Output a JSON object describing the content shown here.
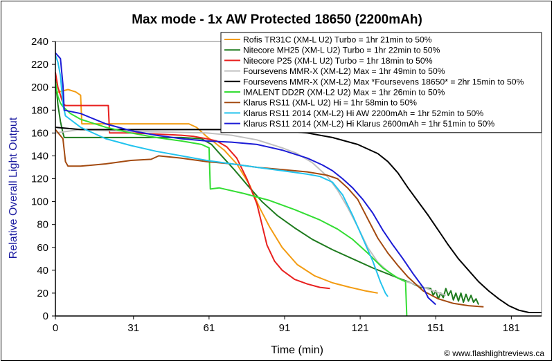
{
  "chart_data": {
    "type": "line",
    "title": "Max mode - 1x AW Protected 18650 (2200mAh)",
    "xlabel": "Time (min)",
    "ylabel": "Relative Overall Light Output",
    "credit": "© www.flashlightreviews.ca",
    "xlim": [
      0,
      193
    ],
    "ylim": [
      0,
      240
    ],
    "xticks": [
      0,
      31,
      61,
      91,
      121,
      151,
      181
    ],
    "yticks": [
      0,
      20,
      40,
      60,
      80,
      100,
      120,
      140,
      160,
      180,
      200,
      220,
      240
    ],
    "grid": false,
    "legend_position": "top-right",
    "series": [
      {
        "name": "Rofis TR31C (XM-L U2) Turbo = 1hr 21min to 50%",
        "color": "#f39c12",
        "points": [
          [
            0,
            195
          ],
          [
            5,
            198
          ],
          [
            8,
            196
          ],
          [
            10,
            193
          ],
          [
            10.5,
            168
          ],
          [
            20,
            168
          ],
          [
            40,
            168
          ],
          [
            50,
            168
          ],
          [
            53,
            168
          ],
          [
            56,
            165
          ],
          [
            60,
            157
          ],
          [
            63,
            152
          ],
          [
            67,
            145
          ],
          [
            72,
            133
          ],
          [
            77,
            115
          ],
          [
            81,
            95
          ],
          [
            85,
            78
          ],
          [
            90,
            60
          ],
          [
            96,
            45
          ],
          [
            103,
            35
          ],
          [
            110,
            29
          ],
          [
            117,
            25
          ],
          [
            123,
            22
          ],
          [
            128,
            20
          ]
        ]
      },
      {
        "name": "Nitecore MH25 (XM-L U2) Turbo = 1hr 22min to 50%",
        "color": "#1e7b1e",
        "points": [
          [
            0,
            207
          ],
          [
            1,
            185
          ],
          [
            2,
            170
          ],
          [
            3,
            160
          ],
          [
            3.5,
            156
          ],
          [
            15,
            156
          ],
          [
            30,
            156
          ],
          [
            50,
            156
          ],
          [
            58,
            155
          ],
          [
            62,
            150
          ],
          [
            66,
            140
          ],
          [
            71,
            128
          ],
          [
            76,
            115
          ],
          [
            82,
            100
          ],
          [
            88,
            88
          ],
          [
            95,
            77
          ],
          [
            102,
            67
          ],
          [
            110,
            58
          ],
          [
            118,
            50
          ],
          [
            126,
            42
          ],
          [
            134,
            35
          ],
          [
            140,
            30
          ],
          [
            145,
            25
          ],
          [
            149,
            24
          ],
          [
            150,
            18
          ],
          [
            151,
            22
          ],
          [
            152,
            15
          ],
          [
            153,
            20
          ],
          [
            154,
            16
          ],
          [
            155,
            24
          ],
          [
            156,
            18
          ],
          [
            157,
            22
          ],
          [
            158,
            14
          ],
          [
            159,
            20
          ],
          [
            160,
            13
          ],
          [
            161,
            20
          ],
          [
            162,
            12
          ],
          [
            163,
            19
          ],
          [
            164,
            13
          ],
          [
            165,
            18
          ],
          [
            166,
            12
          ],
          [
            167,
            15
          ],
          [
            168,
            10
          ]
        ]
      },
      {
        "name": "Nitecore P25 (XM-L U2) Turbo = 1hr 18min to 50%",
        "color": "#e8201f",
        "points": [
          [
            0,
            213
          ],
          [
            1,
            200
          ],
          [
            2,
            193
          ],
          [
            3,
            186
          ],
          [
            4,
            184
          ],
          [
            15,
            184
          ],
          [
            21,
            184
          ],
          [
            21.5,
            160
          ],
          [
            30,
            160
          ],
          [
            50,
            158
          ],
          [
            55,
            157
          ],
          [
            60,
            155
          ],
          [
            64,
            153
          ],
          [
            68,
            148
          ],
          [
            72,
            138
          ],
          [
            76,
            120
          ],
          [
            80,
            98
          ],
          [
            82,
            80
          ],
          [
            84,
            62
          ],
          [
            87,
            48
          ],
          [
            90,
            40
          ],
          [
            95,
            32
          ],
          [
            100,
            28
          ],
          [
            105,
            25
          ],
          [
            109,
            24
          ]
        ]
      },
      {
        "name": "Foursevens MMR-X (XM-L2) Max = 1hr 49min to 50%",
        "color": "#c0c0c0",
        "points": [
          [
            0,
            160
          ],
          [
            10,
            163
          ],
          [
            20,
            162
          ],
          [
            40,
            161
          ],
          [
            60,
            160
          ],
          [
            70,
            158
          ],
          [
            80,
            154
          ],
          [
            90,
            147
          ],
          [
            96,
            142
          ],
          [
            102,
            134
          ],
          [
            108,
            122
          ],
          [
            112,
            110
          ],
          [
            116,
            95
          ],
          [
            120,
            78
          ],
          [
            124,
            60
          ],
          [
            128,
            47
          ],
          [
            133,
            37
          ],
          [
            138,
            31
          ],
          [
            145,
            26
          ],
          [
            150,
            22
          ],
          [
            155,
            18
          ]
        ]
      },
      {
        "name": "Foursevens MMR-X (XM-L2) Max *Foursevens 18650* = 2hr 15min to 50%",
        "color": "#000000",
        "points": [
          [
            0,
            165
          ],
          [
            10,
            163
          ],
          [
            20,
            163
          ],
          [
            40,
            163
          ],
          [
            60,
            163
          ],
          [
            80,
            163
          ],
          [
            90,
            162
          ],
          [
            100,
            160
          ],
          [
            110,
            156
          ],
          [
            120,
            150
          ],
          [
            128,
            142
          ],
          [
            132,
            135
          ],
          [
            136,
            125
          ],
          [
            140,
            112
          ],
          [
            144,
            100
          ],
          [
            148,
            88
          ],
          [
            152,
            75
          ],
          [
            156,
            62
          ],
          [
            160,
            50
          ],
          [
            164,
            40
          ],
          [
            168,
            30
          ],
          [
            172,
            22
          ],
          [
            176,
            15
          ],
          [
            180,
            9
          ],
          [
            184,
            5
          ],
          [
            188,
            3
          ],
          [
            193,
            3
          ]
        ]
      },
      {
        "name": "IMALENT DD2R (XM-L2 U2) Max = 1hr 26min to 50%",
        "color": "#33dd33",
        "points": [
          [
            0,
            205
          ],
          [
            1,
            192
          ],
          [
            2,
            186
          ],
          [
            3,
            183
          ],
          [
            6,
            177
          ],
          [
            10,
            172
          ],
          [
            20,
            165
          ],
          [
            30,
            160
          ],
          [
            40,
            156
          ],
          [
            50,
            153
          ],
          [
            58,
            150
          ],
          [
            60,
            148
          ],
          [
            61,
            147
          ],
          [
            61.5,
            111
          ],
          [
            65,
            112
          ],
          [
            75,
            107
          ],
          [
            85,
            101
          ],
          [
            95,
            93
          ],
          [
            105,
            84
          ],
          [
            112,
            76
          ],
          [
            118,
            67
          ],
          [
            124,
            55
          ],
          [
            130,
            42
          ],
          [
            136,
            33
          ],
          [
            139,
            30
          ],
          [
            139.5,
            0
          ]
        ]
      },
      {
        "name": "Klarus RS11 (XM-L U2) Hi = 1hr 58min to 50%",
        "color": "#a34a10",
        "points": [
          [
            0,
            163
          ],
          [
            3,
            155
          ],
          [
            4,
            135
          ],
          [
            5,
            131
          ],
          [
            10,
            131
          ],
          [
            20,
            133
          ],
          [
            30,
            136
          ],
          [
            38,
            137
          ],
          [
            40,
            139
          ],
          [
            41,
            140
          ],
          [
            50,
            138
          ],
          [
            60,
            135
          ],
          [
            70,
            133
          ],
          [
            80,
            130
          ],
          [
            90,
            128
          ],
          [
            100,
            126
          ],
          [
            108,
            123
          ],
          [
            112,
            120
          ],
          [
            116,
            112
          ],
          [
            120,
            102
          ],
          [
            124,
            85
          ],
          [
            128,
            68
          ],
          [
            132,
            55
          ],
          [
            136,
            44
          ],
          [
            140,
            34
          ],
          [
            146,
            22
          ],
          [
            152,
            15
          ],
          [
            158,
            11
          ],
          [
            164,
            9
          ],
          [
            170,
            8
          ]
        ]
      },
      {
        "name": "Klarus RS11 2014 (XM-L2) Hi AW 2200mAh = 1hr 52min to 50%",
        "color": "#22c3ee",
        "points": [
          [
            0,
            228
          ],
          [
            1,
            222
          ],
          [
            2,
            210
          ],
          [
            3,
            185
          ],
          [
            4,
            175
          ],
          [
            10,
            165
          ],
          [
            20,
            155
          ],
          [
            30,
            149
          ],
          [
            40,
            144
          ],
          [
            50,
            140
          ],
          [
            60,
            136
          ],
          [
            70,
            133
          ],
          [
            80,
            130
          ],
          [
            90,
            127
          ],
          [
            100,
            124
          ],
          [
            105,
            122
          ],
          [
            110,
            117
          ],
          [
            114,
            106
          ],
          [
            118,
            88
          ],
          [
            122,
            68
          ],
          [
            126,
            48
          ],
          [
            129,
            30
          ],
          [
            131,
            20
          ],
          [
            132,
            17
          ]
        ]
      },
      {
        "name": "Klarus RS11 2014 (XM-L2) Hi Klarus 2600mAh = 1hr 51min to 50%",
        "color": "#1c1cd6",
        "points": [
          [
            0,
            230
          ],
          [
            2,
            225
          ],
          [
            3,
            202
          ],
          [
            3.5,
            180
          ],
          [
            10,
            177
          ],
          [
            20,
            168
          ],
          [
            30,
            162
          ],
          [
            40,
            158
          ],
          [
            50,
            155
          ],
          [
            60,
            153
          ],
          [
            70,
            152
          ],
          [
            80,
            150
          ],
          [
            90,
            145
          ],
          [
            100,
            138
          ],
          [
            106,
            132
          ],
          [
            110,
            127
          ],
          [
            114,
            120
          ],
          [
            118,
            112
          ],
          [
            122,
            102
          ],
          [
            126,
            90
          ],
          [
            130,
            75
          ],
          [
            134,
            62
          ],
          [
            138,
            50
          ],
          [
            142,
            37
          ],
          [
            146,
            25
          ],
          [
            148,
            16
          ],
          [
            150,
            12
          ],
          [
            151,
            10
          ]
        ]
      }
    ]
  }
}
